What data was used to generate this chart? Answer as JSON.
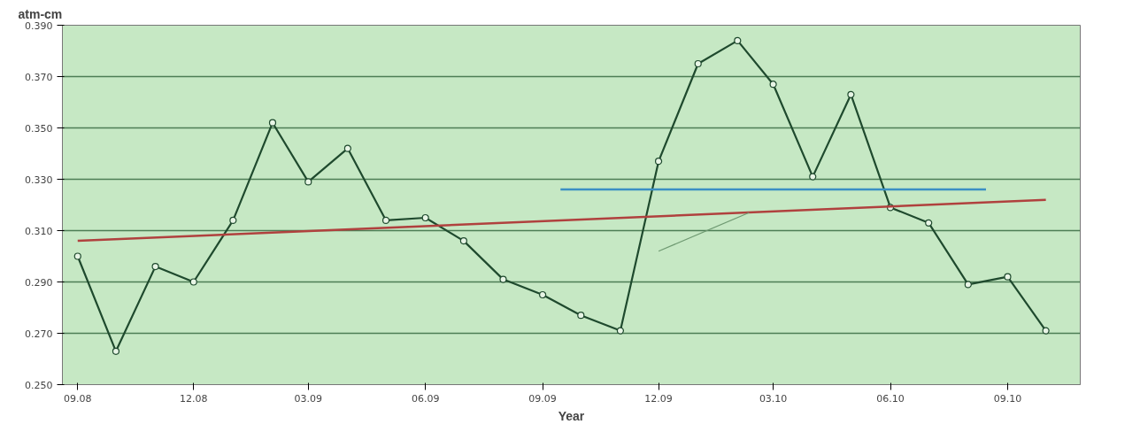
{
  "chart_data": {
    "type": "line",
    "ylabel": "atm-cm",
    "xlabel": "Year",
    "x": [
      "2008-09",
      "2008-10",
      "2008-11",
      "2008-12",
      "2009-01",
      "2009-02",
      "2009-03",
      "2009-04",
      "2009-05",
      "2009-06",
      "2009-07",
      "2009-08",
      "2009-09",
      "2009-10",
      "2009-11",
      "2009-12",
      "2010-01",
      "2010-02",
      "2010-03",
      "2010-04",
      "2010-05",
      "2010-06",
      "2010-07",
      "2010-08",
      "2010-09",
      "2010-10"
    ],
    "series": [
      {
        "color": "#1f4a2e",
        "values": [
          0.3,
          0.263,
          0.296,
          0.29,
          0.314,
          0.352,
          0.329,
          0.342,
          0.314,
          0.315,
          0.306,
          0.291,
          0.285,
          0.277,
          0.271,
          0.337,
          0.375,
          0.384,
          0.367,
          0.331,
          0.363,
          0.319,
          0.313,
          0.289,
          0.292,
          0.271
        ]
      },
      {
        "type": "line",
        "marker": "none",
        "color": "#b0413e",
        "x": [
          "2008-09",
          "2010-10"
        ],
        "values": [
          0.306,
          0.322
        ]
      },
      {
        "type": "line",
        "marker": "none",
        "color": "#3b8fc4",
        "x": [
          "2009-09-15",
          "2010-08-15"
        ],
        "values": [
          0.326,
          0.326
        ]
      },
      {
        "type": "line",
        "marker": "none",
        "color": "#6f9a72",
        "x": [
          "2009-12",
          "2010-02-10"
        ],
        "values": [
          0.302,
          0.317
        ]
      }
    ],
    "xlim": [
      "2008-08-20",
      "2010-10-28"
    ],
    "xticks": [
      {
        "value": "2008-09",
        "label": "09.08"
      },
      {
        "value": "2008-12",
        "label": "12.08"
      },
      {
        "value": "2009-03",
        "label": "03.09"
      },
      {
        "value": "2009-06",
        "label": "06.09"
      },
      {
        "value": "2009-09",
        "label": "09.09"
      },
      {
        "value": "2009-12",
        "label": "12.09"
      },
      {
        "value": "2010-03",
        "label": "03.10"
      },
      {
        "value": "2010-06",
        "label": "06.10"
      },
      {
        "value": "2010-09",
        "label": "09.10"
      }
    ],
    "ylim": [
      0.25,
      0.39
    ],
    "yticks": [
      {
        "value": 0.25,
        "label": "0.250"
      },
      {
        "value": 0.27,
        "label": "0.270"
      },
      {
        "value": 0.29,
        "label": "0.290"
      },
      {
        "value": 0.31,
        "label": "0.310"
      },
      {
        "value": 0.33,
        "label": "0.330"
      },
      {
        "value": 0.35,
        "label": "0.350"
      },
      {
        "value": 0.37,
        "label": "0.370"
      },
      {
        "value": 0.39,
        "label": "0.390"
      }
    ],
    "grid": "y",
    "marker": "circle",
    "line_style": "solid"
  }
}
